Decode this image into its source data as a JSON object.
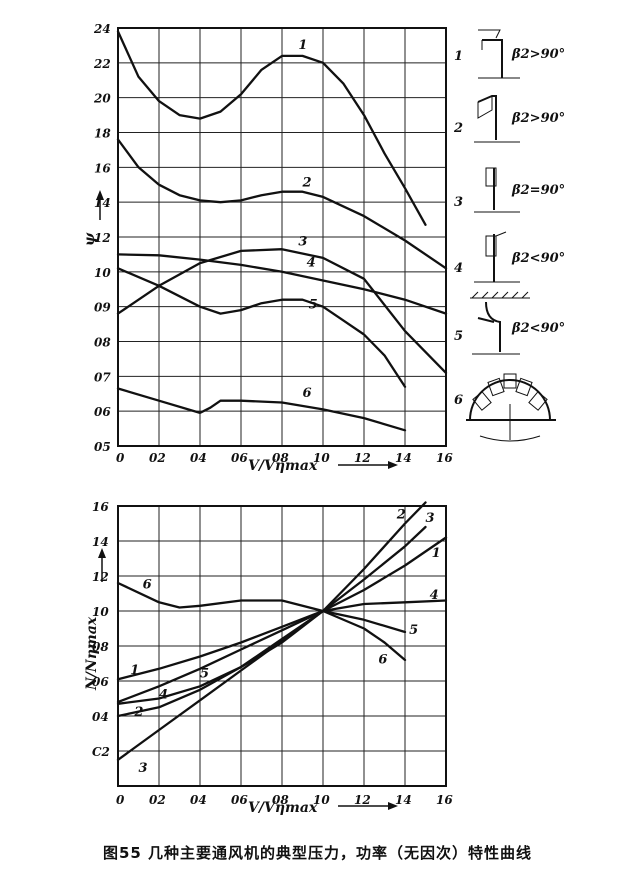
{
  "caption": "图55  几种主要通风机的典型压力，功率（无因次）特性曲线",
  "chart_data": [
    {
      "type": "line",
      "ylabel": "ψ",
      "xlabel": "V/Vηmax",
      "xlim": [
        0,
        1.6
      ],
      "ylim": [
        0.5,
        2.4
      ],
      "x_ticks": [
        "0",
        "02",
        "04",
        "06",
        "08",
        "10",
        "12",
        "14",
        "16"
      ],
      "y_ticks": [
        "05",
        "06",
        "07",
        "08",
        "09",
        "10",
        "12",
        "14",
        "16",
        "18",
        "20",
        "22",
        "24"
      ],
      "series": [
        {
          "name": "1",
          "x": [
            0,
            0.1,
            0.2,
            0.3,
            0.4,
            0.5,
            0.6,
            0.7,
            0.8,
            0.9,
            1.0,
            1.1,
            1.2,
            1.3,
            1.4,
            1.5
          ],
          "y": [
            2.38,
            2.12,
            1.98,
            1.9,
            1.88,
            1.92,
            2.02,
            2.16,
            2.24,
            2.24,
            2.2,
            2.08,
            1.9,
            1.68,
            1.48,
            1.27
          ]
        },
        {
          "name": "2",
          "x": [
            0,
            0.1,
            0.2,
            0.3,
            0.4,
            0.5,
            0.6,
            0.7,
            0.8,
            0.9,
            1.0,
            1.2,
            1.4,
            1.6
          ],
          "y": [
            1.76,
            1.6,
            1.5,
            1.44,
            1.41,
            1.4,
            1.41,
            1.44,
            1.46,
            1.46,
            1.43,
            1.32,
            1.18,
            1.02
          ]
        },
        {
          "name": "3",
          "x": [
            0,
            0.2,
            0.4,
            0.6,
            0.8,
            1.0,
            1.2,
            1.4,
            1.6
          ],
          "y": [
            1.1,
            1.095,
            1.07,
            1.04,
            1.0,
            0.975,
            0.95,
            0.92,
            0.88
          ]
        },
        {
          "name": "4",
          "x": [
            0,
            0.2,
            0.4,
            0.6,
            0.8,
            1.0,
            1.2,
            1.4,
            1.6
          ],
          "y": [
            0.88,
            0.96,
            1.05,
            1.12,
            1.13,
            1.08,
            0.98,
            0.83,
            0.71
          ]
        },
        {
          "name": "5",
          "x": [
            0,
            0.2,
            0.4,
            0.5,
            0.6,
            0.7,
            0.8,
            0.9,
            1.0,
            1.1,
            1.2,
            1.3,
            1.4
          ],
          "y": [
            1.02,
            0.96,
            0.9,
            0.88,
            0.89,
            0.91,
            0.92,
            0.92,
            0.9,
            0.86,
            0.82,
            0.76,
            0.67
          ]
        },
        {
          "name": "6",
          "x": [
            0,
            0.2,
            0.4,
            0.45,
            0.5,
            0.6,
            0.8,
            1.0,
            1.2,
            1.4
          ],
          "y": [
            0.665,
            0.63,
            0.595,
            0.61,
            0.63,
            0.63,
            0.625,
            0.605,
            0.58,
            0.545
          ]
        }
      ]
    },
    {
      "type": "line",
      "ylabel": "N/Nηmax",
      "xlabel": "V/Vηmax",
      "xlim": [
        0,
        1.6
      ],
      "ylim": [
        0,
        1.6
      ],
      "x_ticks": [
        "0",
        "02",
        "04",
        "06",
        "08",
        "10",
        "12",
        "14",
        "16"
      ],
      "y_ticks": [
        "02",
        "04",
        "06",
        "08",
        "10",
        "12",
        "14",
        "16"
      ],
      "y_tick_first": "C2",
      "series": [
        {
          "name": "1",
          "x": [
            0,
            0.2,
            0.4,
            0.6,
            0.8,
            1.0,
            1.2,
            1.4,
            1.6
          ],
          "y": [
            0.61,
            0.67,
            0.74,
            0.82,
            0.91,
            1.0,
            1.12,
            1.26,
            1.42
          ]
        },
        {
          "name": "2",
          "x": [
            0,
            0.2,
            0.4,
            0.6,
            0.8,
            1.0,
            1.2,
            1.4,
            1.5
          ],
          "y": [
            0.47,
            0.5,
            0.57,
            0.68,
            0.82,
            1.0,
            1.24,
            1.5,
            1.62
          ]
        },
        {
          "name": "3",
          "x": [
            0,
            0.2,
            0.4,
            0.6,
            0.8,
            1.0,
            1.2,
            1.4,
            1.5
          ],
          "y": [
            0.15,
            0.32,
            0.49,
            0.66,
            0.83,
            1.0,
            1.18,
            1.37,
            1.48
          ]
        },
        {
          "name": "4",
          "x": [
            0,
            0.2,
            0.4,
            0.6,
            0.8,
            1.0,
            1.2,
            1.4,
            1.6
          ],
          "y": [
            0.4,
            0.45,
            0.55,
            0.68,
            0.84,
            1.0,
            1.04,
            1.05,
            1.06
          ]
        },
        {
          "name": "5",
          "x": [
            0,
            0.2,
            0.4,
            0.6,
            0.8,
            1.0,
            1.2,
            1.4
          ],
          "y": [
            0.48,
            0.57,
            0.67,
            0.78,
            0.89,
            1.0,
            0.95,
            0.88
          ]
        },
        {
          "name": "6",
          "x": [
            0,
            0.2,
            0.3,
            0.4,
            0.6,
            0.8,
            1.0,
            1.2,
            1.3,
            1.4
          ],
          "y": [
            1.16,
            1.05,
            1.02,
            1.03,
            1.06,
            1.06,
            1.0,
            0.9,
            0.82,
            0.72
          ]
        }
      ]
    }
  ],
  "blade_legend": [
    {
      "num": "1",
      "label": "β2>90°"
    },
    {
      "num": "2",
      "label": "β2>90°"
    },
    {
      "num": "3",
      "label": "β2=90°"
    },
    {
      "num": "4",
      "label": "β2<90°"
    },
    {
      "num": "5",
      "label": "β2<90°"
    },
    {
      "num": "6",
      "label": ""
    }
  ]
}
